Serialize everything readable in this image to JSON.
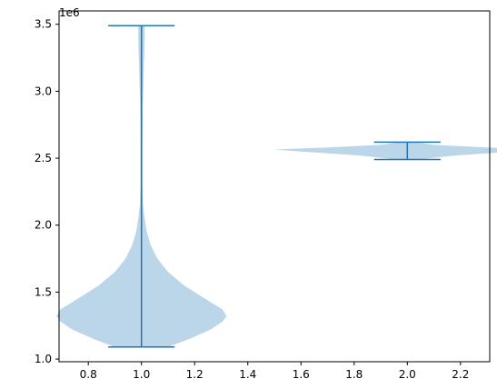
{
  "chart_data": {
    "type": "violin",
    "title": "",
    "xlabel": "",
    "ylabel": "",
    "y_offset_label": "1e6",
    "xlim": [
      0.69,
      2.31
    ],
    "ylim": [
      0.98,
      3.6
    ],
    "x_ticks": [
      0.8,
      1.0,
      1.2,
      1.4,
      1.6,
      1.8,
      2.0,
      2.2
    ],
    "x_tick_labels": [
      "0.8",
      "1.0",
      "1.2",
      "1.4",
      "1.6",
      "1.8",
      "2.0",
      "2.2"
    ],
    "y_ticks": [
      1.0,
      1.5,
      2.0,
      2.5,
      3.0,
      3.5
    ],
    "y_tick_labels": [
      "1.0",
      "1.5",
      "2.0",
      "2.5",
      "3.0",
      "3.5"
    ],
    "grid": false,
    "colors": {
      "body": "#1f77b4",
      "body_opacity": 0.3,
      "lines": "#1f77b4"
    },
    "violins": [
      {
        "position": 1.0,
        "min": 1.09,
        "max": 3.49,
        "widths": [
          0.3
        ],
        "profile": [
          [
            1.09,
            0.1
          ],
          [
            1.15,
            0.18
          ],
          [
            1.22,
            0.26
          ],
          [
            1.28,
            0.305
          ],
          [
            1.32,
            0.32
          ],
          [
            1.37,
            0.305
          ],
          [
            1.45,
            0.24
          ],
          [
            1.55,
            0.16
          ],
          [
            1.65,
            0.1
          ],
          [
            1.75,
            0.06
          ],
          [
            1.85,
            0.035
          ],
          [
            1.95,
            0.02
          ],
          [
            2.05,
            0.012
          ],
          [
            2.15,
            0.006
          ],
          [
            2.3,
            0.004
          ],
          [
            2.6,
            0.004
          ],
          [
            2.9,
            0.005
          ],
          [
            3.1,
            0.008
          ],
          [
            3.25,
            0.01
          ],
          [
            3.4,
            0.012
          ],
          [
            3.49,
            0.012
          ]
        ]
      },
      {
        "position": 2.0,
        "min": 2.49,
        "max": 2.62,
        "profile": [
          [
            2.49,
            0.04
          ],
          [
            2.52,
            0.18
          ],
          [
            2.55,
            0.4
          ],
          [
            2.565,
            0.5
          ],
          [
            2.58,
            0.3
          ],
          [
            2.6,
            0.1
          ],
          [
            2.62,
            0.03
          ]
        ]
      }
    ]
  }
}
